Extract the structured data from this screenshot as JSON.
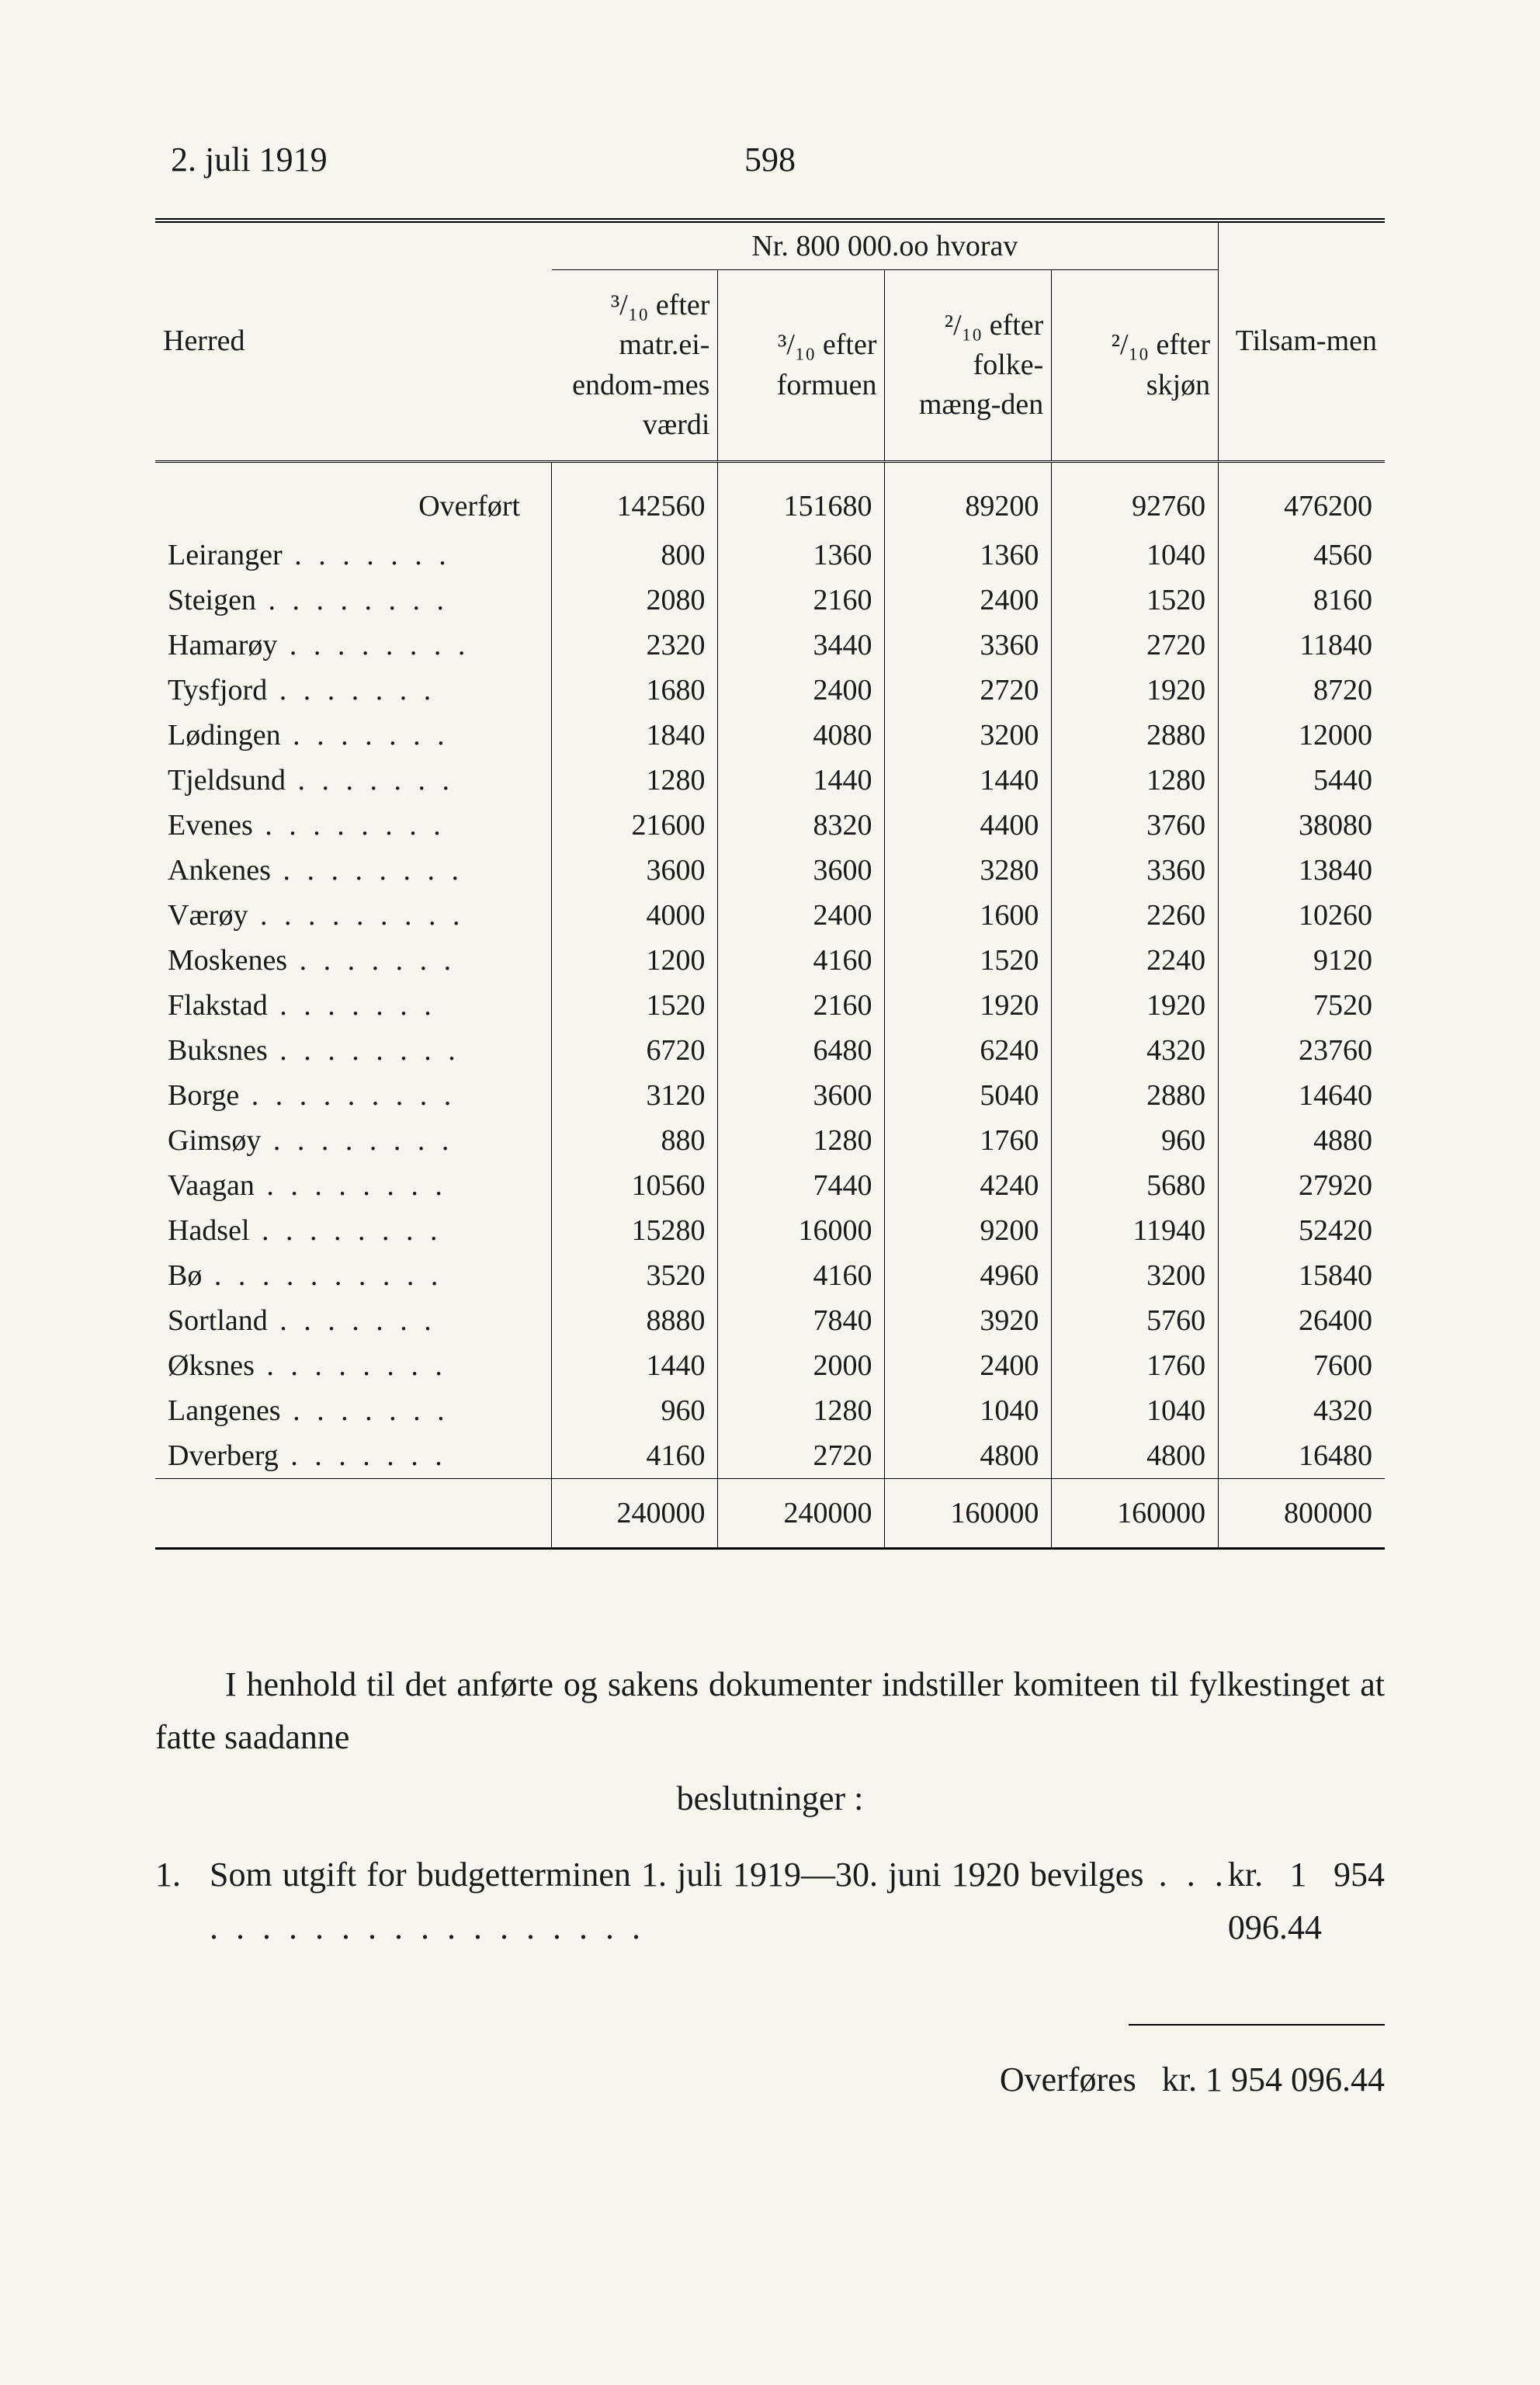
{
  "header": {
    "date": "2. juli 1919",
    "page": "598"
  },
  "table": {
    "group_header_prefix": "Nr.",
    "group_header_value": "800 000.oo hvorav",
    "columns": {
      "herred": "Herred",
      "c1": "³/₁₀ efter matr.ei-endom-mes værdi",
      "c2": "³/₁₀ efter formuen",
      "c3": "²/₁₀ efter folke-mæng-den",
      "c4": "²/₁₀ efter skjøn",
      "c5": "Tilsam-men"
    },
    "overfort_label": "Overført",
    "overfort": [
      "142560",
      "151680",
      "89200",
      "92760",
      "476200"
    ],
    "rows": [
      {
        "name": "Leiranger",
        "v": [
          "800",
          "1360",
          "1360",
          "1040",
          "4560"
        ]
      },
      {
        "name": "Steigen",
        "v": [
          "2080",
          "2160",
          "2400",
          "1520",
          "8160"
        ]
      },
      {
        "name": "Hamarøy",
        "v": [
          "2320",
          "3440",
          "3360",
          "2720",
          "11840"
        ]
      },
      {
        "name": "Tysfjord",
        "v": [
          "1680",
          "2400",
          "2720",
          "1920",
          "8720"
        ]
      },
      {
        "name": "Lødingen",
        "v": [
          "1840",
          "4080",
          "3200",
          "2880",
          "12000"
        ]
      },
      {
        "name": "Tjeldsund",
        "v": [
          "1280",
          "1440",
          "1440",
          "1280",
          "5440"
        ]
      },
      {
        "name": "Evenes",
        "v": [
          "21600",
          "8320",
          "4400",
          "3760",
          "38080"
        ]
      },
      {
        "name": "Ankenes",
        "v": [
          "3600",
          "3600",
          "3280",
          "3360",
          "13840"
        ]
      },
      {
        "name": "Værøy",
        "v": [
          "4000",
          "2400",
          "1600",
          "2260",
          "10260"
        ]
      },
      {
        "name": "Moskenes",
        "v": [
          "1200",
          "4160",
          "1520",
          "2240",
          "9120"
        ]
      },
      {
        "name": "Flakstad",
        "v": [
          "1520",
          "2160",
          "1920",
          "1920",
          "7520"
        ]
      },
      {
        "name": "Buksnes",
        "v": [
          "6720",
          "6480",
          "6240",
          "4320",
          "23760"
        ]
      },
      {
        "name": "Borge",
        "v": [
          "3120",
          "3600",
          "5040",
          "2880",
          "14640"
        ]
      },
      {
        "name": "Gimsøy",
        "v": [
          "880",
          "1280",
          "1760",
          "960",
          "4880"
        ]
      },
      {
        "name": "Vaagan",
        "v": [
          "10560",
          "7440",
          "4240",
          "5680",
          "27920"
        ]
      },
      {
        "name": "Hadsel",
        "v": [
          "15280",
          "16000",
          "9200",
          "11940",
          "52420"
        ]
      },
      {
        "name": "Bø",
        "v": [
          "3520",
          "4160",
          "4960",
          "3200",
          "15840"
        ]
      },
      {
        "name": "Sortland",
        "v": [
          "8880",
          "7840",
          "3920",
          "5760",
          "26400"
        ]
      },
      {
        "name": "Øksnes",
        "v": [
          "1440",
          "2000",
          "2400",
          "1760",
          "7600"
        ]
      },
      {
        "name": "Langenes",
        "v": [
          "960",
          "1280",
          "1040",
          "1040",
          "4320"
        ]
      },
      {
        "name": "Dverberg",
        "v": [
          "4160",
          "2720",
          "4800",
          "4800",
          "16480"
        ]
      }
    ],
    "totals": [
      "240000",
      "240000",
      "160000",
      "160000",
      "800000"
    ]
  },
  "text": {
    "para1": "I henhold til det anførte og sakens dokumenter indstiller komiteen til fylkestinget at fatte saadanne",
    "para2": "beslutninger :",
    "item1_num": "1.",
    "item1_text": "Som utgift for budgetterminen 1. juli 1919—30. juni 1920 bevilges",
    "item1_amount": "kr. 1 954 096.44",
    "overfores_label": "Overføres",
    "overfores_amount": "kr.  1 954 096.44"
  },
  "style": {
    "text_color": "#1a1a1a",
    "background": "#f8f5ee",
    "base_fontsize_pt": 32
  }
}
